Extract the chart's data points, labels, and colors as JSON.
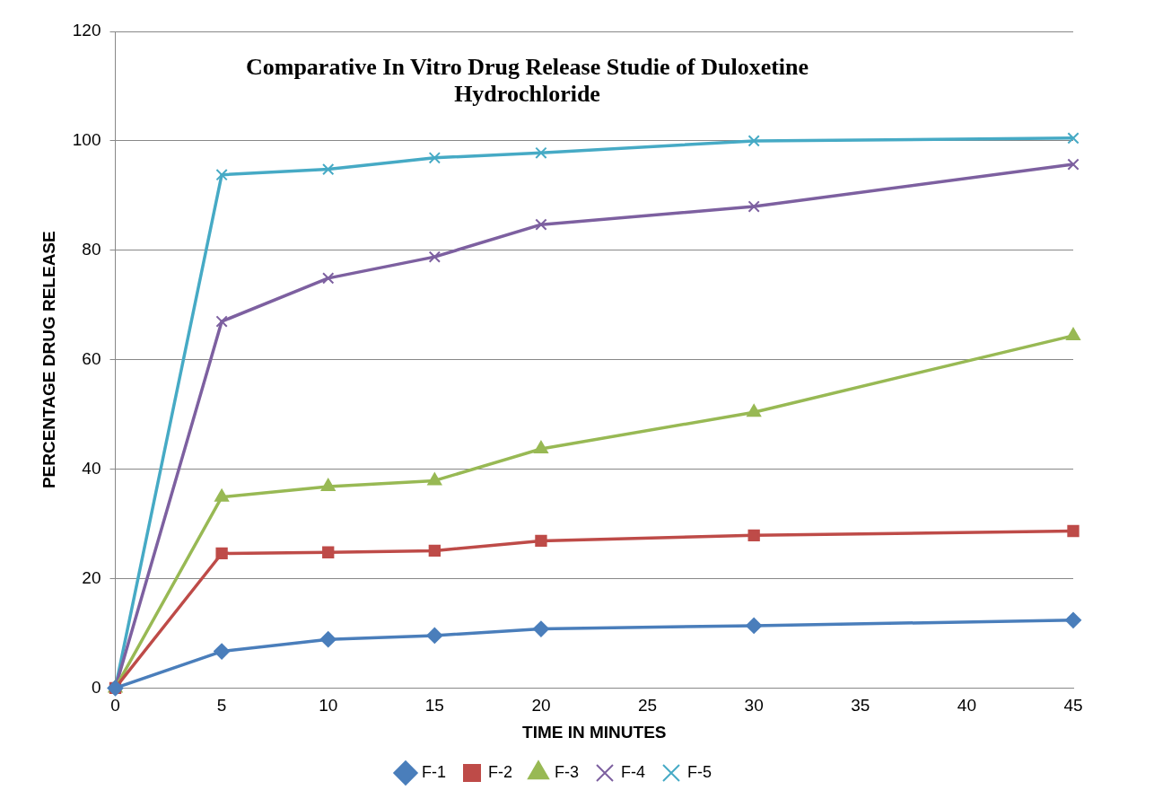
{
  "chart_data": {
    "type": "line",
    "title": "Comparative In Vitro Drug Release Studie of Duloxetine Hydrochloride",
    "xlabel": "TIME IN MINUTES",
    "ylabel": "PERCENTAGE DRUG RELEASE",
    "x": [
      0,
      5,
      10,
      15,
      20,
      30,
      45
    ],
    "series": [
      {
        "name": "F-1",
        "color": "#4a7ebb",
        "marker": "diamond",
        "values": [
          0,
          6.7,
          8.9,
          9.6,
          10.8,
          11.4,
          12.4
        ]
      },
      {
        "name": "F-2",
        "color": "#be4b48",
        "marker": "square",
        "values": [
          0,
          24.6,
          24.8,
          25.1,
          26.9,
          27.9,
          28.7
        ]
      },
      {
        "name": "F-3",
        "color": "#98b954",
        "marker": "triangle",
        "values": [
          0,
          34.9,
          36.8,
          37.9,
          43.7,
          50.4,
          64.4
        ]
      },
      {
        "name": "F-4",
        "color": "#7d60a0",
        "marker": "cross",
        "values": [
          0,
          67,
          74.9,
          78.8,
          84.7,
          88,
          95.7
        ]
      },
      {
        "name": "F-5",
        "color": "#46aac5",
        "marker": "cross",
        "values": [
          0,
          93.8,
          94.8,
          96.9,
          97.8,
          100,
          100.5
        ]
      }
    ],
    "xlim": [
      0,
      45
    ],
    "xticks": [
      0,
      5,
      10,
      15,
      20,
      25,
      30,
      35,
      40,
      45
    ],
    "ylim": [
      0,
      120
    ],
    "yticks": [
      0,
      20,
      40,
      60,
      80,
      100,
      120
    ],
    "grid": "y",
    "legend": "bottom"
  }
}
